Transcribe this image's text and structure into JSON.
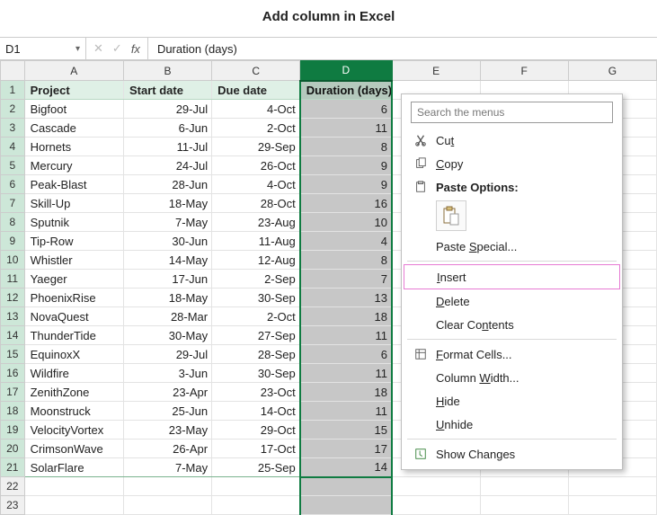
{
  "title": "Add column in Excel",
  "namebox": "D1",
  "formula_value": "Duration (days)",
  "col_letters": [
    "A",
    "B",
    "C",
    "D",
    "E",
    "F",
    "G"
  ],
  "row_numbers": [
    1,
    2,
    3,
    4,
    5,
    6,
    7,
    8,
    9,
    10,
    11,
    12,
    13,
    14,
    15,
    16,
    17,
    18,
    19,
    20,
    21,
    22,
    23
  ],
  "headers": {
    "A": "Project",
    "B": "Start date",
    "C": "Due date",
    "D": "Duration (days)"
  },
  "rows": [
    {
      "project": "Bigfoot",
      "start": "29-Jul",
      "due": "4-Oct",
      "dur": 6
    },
    {
      "project": "Cascade",
      "start": "6-Jun",
      "due": "2-Oct",
      "dur": 11
    },
    {
      "project": "Hornets",
      "start": "11-Jul",
      "due": "29-Sep",
      "dur": 8
    },
    {
      "project": "Mercury",
      "start": "24-Jul",
      "due": "26-Oct",
      "dur": 9
    },
    {
      "project": "Peak-Blast",
      "start": "28-Jun",
      "due": "4-Oct",
      "dur": 9
    },
    {
      "project": "Skill-Up",
      "start": "18-May",
      "due": "28-Oct",
      "dur": 16
    },
    {
      "project": "Sputnik",
      "start": "7-May",
      "due": "23-Aug",
      "dur": 10
    },
    {
      "project": "Tip-Row",
      "start": "30-Jun",
      "due": "11-Aug",
      "dur": 4
    },
    {
      "project": "Whistler",
      "start": "14-May",
      "due": "12-Aug",
      "dur": 8
    },
    {
      "project": "Yaeger",
      "start": "17-Jun",
      "due": "2-Sep",
      "dur": 7
    },
    {
      "project": "PhoenixRise",
      "start": "18-May",
      "due": "30-Sep",
      "dur": 13
    },
    {
      "project": "NovaQuest",
      "start": "28-Mar",
      "due": "2-Oct",
      "dur": 18
    },
    {
      "project": "ThunderTide",
      "start": "30-May",
      "due": "27-Sep",
      "dur": 11
    },
    {
      "project": "EquinoxX",
      "start": "29-Jul",
      "due": "28-Sep",
      "dur": 6
    },
    {
      "project": "Wildfire",
      "start": "3-Jun",
      "due": "30-Sep",
      "dur": 11
    },
    {
      "project": "ZenithZone",
      "start": "23-Apr",
      "due": "23-Oct",
      "dur": 18
    },
    {
      "project": "Moonstruck",
      "start": "25-Jun",
      "due": "14-Oct",
      "dur": 11
    },
    {
      "project": "VelocityVortex",
      "start": "23-May",
      "due": "29-Oct",
      "dur": 15
    },
    {
      "project": "CrimsonWave",
      "start": "26-Apr",
      "due": "17-Oct",
      "dur": 17
    },
    {
      "project": "SolarFlare",
      "start": "7-May",
      "due": "25-Sep",
      "dur": 14
    }
  ],
  "context_menu": {
    "search_placeholder": "Search the menus",
    "cut": "Cut",
    "copy": "Copy",
    "paste_options": "Paste Options:",
    "paste_special": "Paste Special...",
    "insert": "Insert",
    "delete": "Delete",
    "clear": "Clear Contents",
    "format_cells": "Format Cells...",
    "col_width": "Column Width...",
    "hide": "Hide",
    "unhide": "Unhide",
    "show_changes": "Show Changes"
  },
  "colors": {
    "sel_green": "#0f7b41",
    "sel_fill": "#c7c7c7",
    "header_fill": "#dff0e6",
    "highlight_border": "#e67bd3"
  }
}
